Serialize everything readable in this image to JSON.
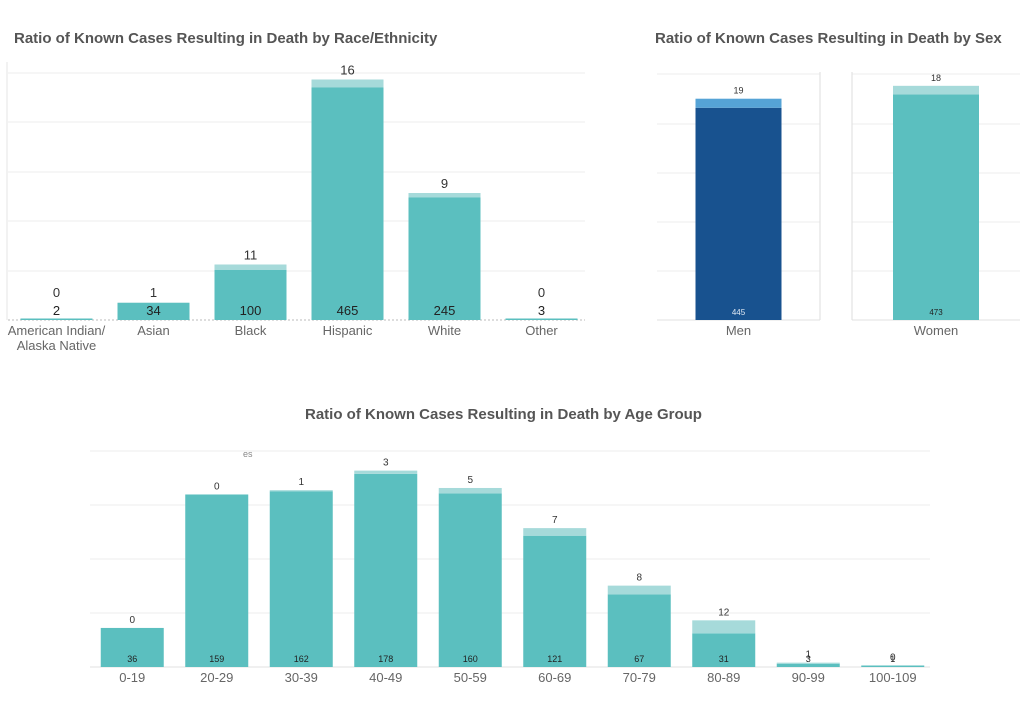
{
  "colors": {
    "cases": "#5bbfbf",
    "deaths": "#a6dada",
    "men_cases": "#18528f",
    "men_deaths": "#55a3d6",
    "grid": "#eeeeee",
    "tick": "#666666"
  },
  "titles": {
    "race": "Ratio of Known Cases Resulting in Death by Race/Ethnicity",
    "sex": "Ratio of Known Cases Resulting in Death by Sex",
    "age": "Ratio of Known Cases Resulting in Death by Age Group"
  },
  "stray_text": "es",
  "chart_data": [
    {
      "id": "race",
      "type": "bar",
      "stacked": true,
      "title": "Ratio of Known Cases Resulting in Death by Race/Ethnicity",
      "categories": [
        [
          "American Indian/",
          "Alaska Native"
        ],
        [
          "Asian"
        ],
        [
          "Black"
        ],
        [
          "Hispanic"
        ],
        [
          "White"
        ],
        [
          "Other"
        ]
      ],
      "series": [
        {
          "values": [
            2,
            34,
            100,
            465,
            245,
            3
          ]
        },
        {
          "values": [
            0,
            1,
            11,
            16,
            9,
            0
          ]
        }
      ],
      "ylim": [
        0,
        500
      ],
      "grid": true
    },
    {
      "id": "sex",
      "type": "bar",
      "stacked": true,
      "title": "Ratio of Known Cases Resulting in Death by Sex",
      "categories": [
        "Men",
        "Women"
      ],
      "series": [
        {
          "values": [
            445,
            473
          ]
        },
        {
          "values": [
            19,
            18
          ]
        }
      ],
      "ylim": [
        0,
        520
      ],
      "grid": true
    },
    {
      "id": "age",
      "type": "bar",
      "stacked": true,
      "title": "Ratio of Known Cases Resulting in Death by Age Group",
      "categories": [
        "0-19",
        "20-29",
        "30-39",
        "40-49",
        "50-59",
        "60-69",
        "70-79",
        "80-89",
        "90-99",
        "100-109"
      ],
      "series": [
        {
          "values": [
            36,
            159,
            162,
            178,
            160,
            121,
            67,
            31,
            3,
            1
          ]
        },
        {
          "values": [
            0,
            0,
            1,
            3,
            5,
            7,
            8,
            12,
            1,
            0
          ]
        }
      ],
      "ylim": [
        0,
        200
      ],
      "grid": true
    }
  ]
}
